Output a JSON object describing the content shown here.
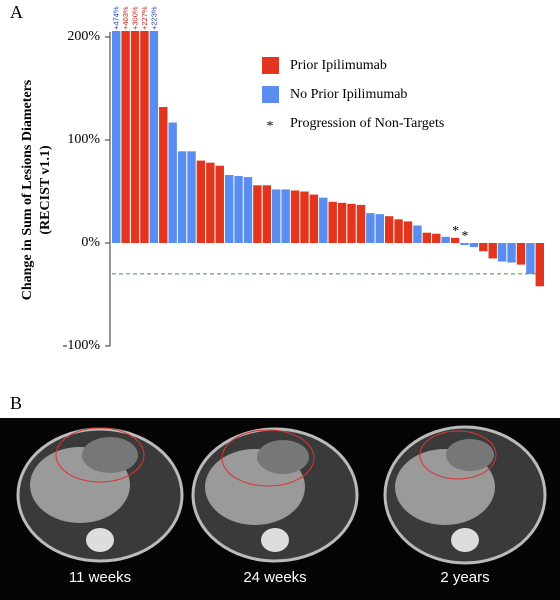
{
  "panel_a_label": "A",
  "chart_data": {
    "type": "bar",
    "ylabel": [
      "Change in Sum of Lesions Diameters",
      "(RECIST v1.1)"
    ],
    "ylim": [
      -100,
      205
    ],
    "yticks": [
      {
        "value": -100,
        "label": "-100%"
      },
      {
        "value": 0,
        "label": "0%"
      },
      {
        "value": 100,
        "label": "100%"
      },
      {
        "value": 200,
        "label": "200%"
      }
    ],
    "series": [
      {
        "name": "Prior Ipilimumab",
        "color": "#e2351d",
        "values": [
          null,
          403,
          300,
          227,
          null,
          132,
          null,
          null,
          null,
          80,
          78,
          75,
          null,
          null,
          null,
          56,
          56,
          null,
          null,
          51,
          50,
          47,
          null,
          40,
          39,
          38,
          37,
          null,
          null,
          26,
          23,
          21,
          null,
          10,
          9,
          null,
          5,
          null,
          null,
          -8,
          -15,
          null,
          null,
          -21,
          null,
          -42
        ],
        "value_labels": [
          null,
          "+403%",
          "+300%",
          "+227%",
          null,
          null,
          null,
          null,
          null,
          null,
          null,
          null,
          null,
          null,
          null,
          null,
          null,
          null,
          null,
          null,
          null,
          null,
          null,
          null,
          null,
          null,
          null,
          null,
          null,
          null,
          null,
          null,
          null,
          null,
          null,
          null,
          null,
          null,
          null,
          null,
          null,
          null,
          null,
          null,
          null,
          null
        ]
      },
      {
        "name": "No Prior Ipilimumab",
        "color": "#5a8df0",
        "values": [
          474,
          null,
          null,
          null,
          223,
          null,
          117,
          89,
          89,
          null,
          null,
          null,
          66,
          65,
          64,
          null,
          null,
          52,
          52,
          null,
          null,
          null,
          44,
          null,
          null,
          null,
          null,
          29,
          28,
          null,
          null,
          null,
          17,
          null,
          null,
          6,
          null,
          -2,
          -4,
          null,
          null,
          -18,
          -19,
          null,
          -30,
          null
        ],
        "value_labels": [
          "+474%",
          null,
          null,
          null,
          "+223%",
          null,
          null,
          null,
          null,
          null,
          null,
          null,
          null,
          null,
          null,
          null,
          null,
          null,
          null,
          null,
          null,
          null,
          null,
          null,
          null,
          null,
          null,
          null,
          null,
          null,
          null,
          null,
          null,
          null,
          null,
          null,
          null,
          null,
          null,
          null,
          null,
          null,
          null,
          null,
          null,
          null
        ]
      }
    ],
    "label_colors": [
      "#c0261c",
      "#2a3fb5"
    ],
    "markers": [
      null,
      null,
      null,
      null,
      null,
      null,
      null,
      null,
      null,
      null,
      null,
      null,
      null,
      null,
      null,
      null,
      null,
      null,
      null,
      null,
      null,
      null,
      null,
      null,
      null,
      null,
      null,
      null,
      null,
      null,
      null,
      null,
      null,
      null,
      null,
      null,
      "*",
      "*",
      null,
      null,
      null,
      null,
      null,
      null,
      null,
      null
    ],
    "marker_legend": {
      "symbol": "*",
      "text": "Progression of Non-Targets"
    },
    "reference_line": {
      "value": -30,
      "color": "#3a9a3a"
    }
  },
  "panel_b": {
    "label": "B",
    "captions": [
      "11 weeks",
      "24 weeks",
      "2 years"
    ]
  }
}
